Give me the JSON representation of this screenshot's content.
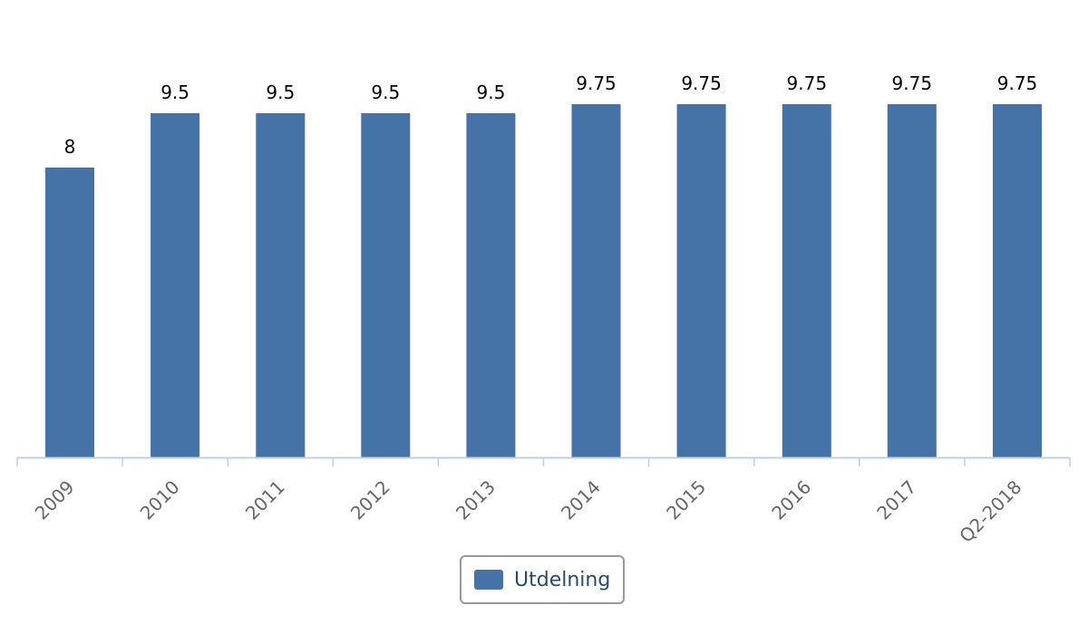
{
  "chart_data": {
    "type": "bar",
    "categories": [
      "2009",
      "2010",
      "2011",
      "2012",
      "2013",
      "2014",
      "2015",
      "2016",
      "2017",
      "Q2-2018"
    ],
    "series": [
      {
        "name": "Utdelning",
        "values": [
          8,
          9.5,
          9.5,
          9.5,
          9.5,
          9.75,
          9.75,
          9.75,
          9.75,
          9.75
        ],
        "labels": [
          "8",
          "9.5",
          "9.5",
          "9.5",
          "9.5",
          "9.75",
          "9.75",
          "9.75",
          "9.75",
          "9.75"
        ],
        "color": "#4572a7"
      }
    ],
    "ylim": [
      0,
      12
    ],
    "grid": false,
    "legend_position": "bottom-center",
    "data_labels": true,
    "axis_color": "#c0d0e0"
  },
  "legend": {
    "label": "Utdelning"
  }
}
